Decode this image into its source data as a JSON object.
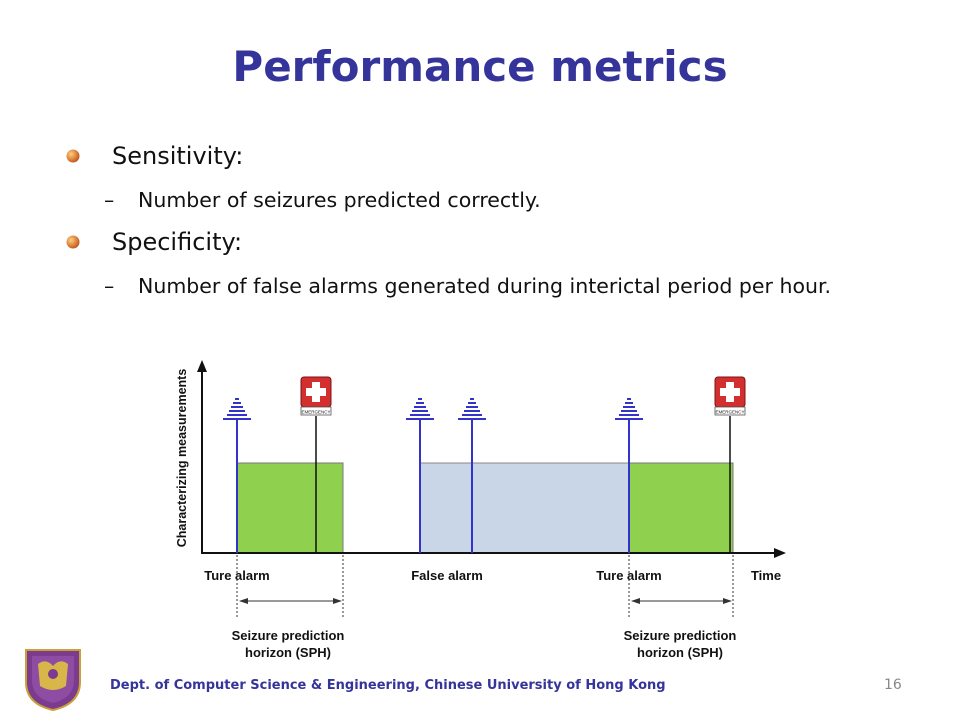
{
  "title": "Performance metrics",
  "bullets": [
    {
      "label": "Sensitivity:",
      "sub": "Number of seizures predicted correctly."
    },
    {
      "label": "Specificity:",
      "sub": "Number of false alarms generated during interictal period per hour."
    }
  ],
  "diagram": {
    "y_axis_label": "Characterizing measurements",
    "x_axis_label": "Time",
    "alarm_labels": [
      "Ture alarm",
      "False alarm",
      "Ture alarm"
    ],
    "sph_label_line1": "Seizure prediction",
    "sph_label_line2": "horizon (SPH)",
    "emergency_text": "EMERGENCY",
    "colors": {
      "true_region": "#8fd14f",
      "false_region": "#c8d6e8",
      "alarm_line": "#3333cc",
      "emergency": "#d32f2f"
    },
    "icons": {
      "alarm": "alarm-bell-icon",
      "seizure": "emergency-cross-icon"
    }
  },
  "footer": "Dept. of Computer Science & Engineering, Chinese University of Hong Kong",
  "page_number": "16"
}
